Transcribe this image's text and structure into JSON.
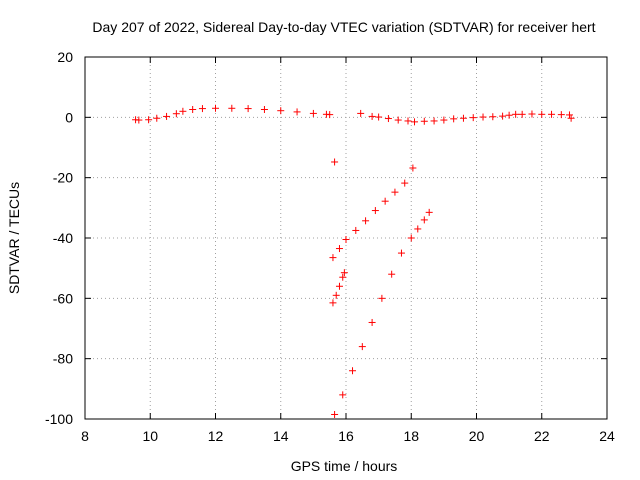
{
  "chart_data": {
    "type": "scatter",
    "title": "Day 207 of 2022, Sidereal Day-to-day VTEC variation (SDTVAR) for receiver hert",
    "xlabel": "GPS time / hours",
    "ylabel": "SDTVAR / TECUs",
    "xlim": [
      8,
      24
    ],
    "ylim": [
      -100,
      20
    ],
    "xticks": [
      "8",
      "10",
      "12",
      "14",
      "16",
      "18",
      "20",
      "22",
      "24"
    ],
    "yticks": [
      "-100",
      "-80",
      "-60",
      "-40",
      "-20",
      "0",
      "20"
    ],
    "grid": true,
    "marker": "+",
    "color": "#ff0000",
    "series": [
      {
        "points": [
          [
            9.55,
            -0.8
          ],
          [
            9.65,
            -0.9
          ],
          [
            9.95,
            -0.8
          ],
          [
            10.2,
            -0.3
          ],
          [
            10.5,
            0.3
          ],
          [
            10.8,
            1.2
          ],
          [
            11.0,
            2.0
          ],
          [
            11.3,
            2.6
          ],
          [
            11.6,
            2.9
          ],
          [
            12.0,
            3.0
          ],
          [
            12.5,
            3.0
          ],
          [
            13.0,
            2.9
          ],
          [
            13.5,
            2.6
          ],
          [
            14.0,
            2.2
          ],
          [
            14.5,
            1.8
          ],
          [
            15.0,
            1.3
          ],
          [
            15.4,
            1.0
          ],
          [
            15.5,
            0.9
          ],
          [
            15.65,
            -14.8
          ],
          [
            16.45,
            1.3
          ],
          [
            16.8,
            0.3
          ],
          [
            17.0,
            0.1
          ],
          [
            17.3,
            -0.4
          ],
          [
            17.6,
            -0.9
          ],
          [
            17.9,
            -1.2
          ],
          [
            18.1,
            -1.5
          ],
          [
            18.4,
            -1.3
          ],
          [
            18.7,
            -1.2
          ],
          [
            19.0,
            -0.9
          ],
          [
            19.3,
            -0.5
          ],
          [
            19.6,
            -0.3
          ],
          [
            19.9,
            -0.1
          ],
          [
            20.2,
            0.1
          ],
          [
            20.5,
            0.2
          ],
          [
            20.8,
            0.4
          ],
          [
            21.0,
            0.7
          ],
          [
            21.2,
            1.0
          ],
          [
            21.4,
            1.0
          ],
          [
            21.7,
            1.1
          ],
          [
            22.0,
            1.0
          ],
          [
            22.3,
            1.0
          ],
          [
            22.6,
            0.9
          ],
          [
            22.85,
            0.8
          ],
          [
            22.9,
            -0.3
          ],
          [
            15.6,
            -46.5
          ],
          [
            15.8,
            -43.5
          ],
          [
            16.0,
            -40.5
          ],
          [
            16.3,
            -37.5
          ],
          [
            16.6,
            -34.3
          ],
          [
            16.9,
            -30.9
          ],
          [
            17.2,
            -27.8
          ],
          [
            17.5,
            -24.8
          ],
          [
            17.8,
            -21.8
          ],
          [
            18.05,
            -16.8
          ],
          [
            15.6,
            -61.5
          ],
          [
            15.7,
            -59.0
          ],
          [
            15.8,
            -56.0
          ],
          [
            15.9,
            -53.0
          ],
          [
            15.95,
            -51.5
          ],
          [
            15.65,
            -98.5
          ],
          [
            15.9,
            -92.0
          ],
          [
            16.2,
            -84.0
          ],
          [
            16.5,
            -76.0
          ],
          [
            16.8,
            -68.0
          ],
          [
            17.1,
            -60.0
          ],
          [
            17.4,
            -52.0
          ],
          [
            17.7,
            -45.0
          ],
          [
            18.0,
            -40.0
          ],
          [
            18.2,
            -37.0
          ],
          [
            18.4,
            -34.0
          ],
          [
            18.55,
            -31.5
          ]
        ]
      }
    ]
  }
}
